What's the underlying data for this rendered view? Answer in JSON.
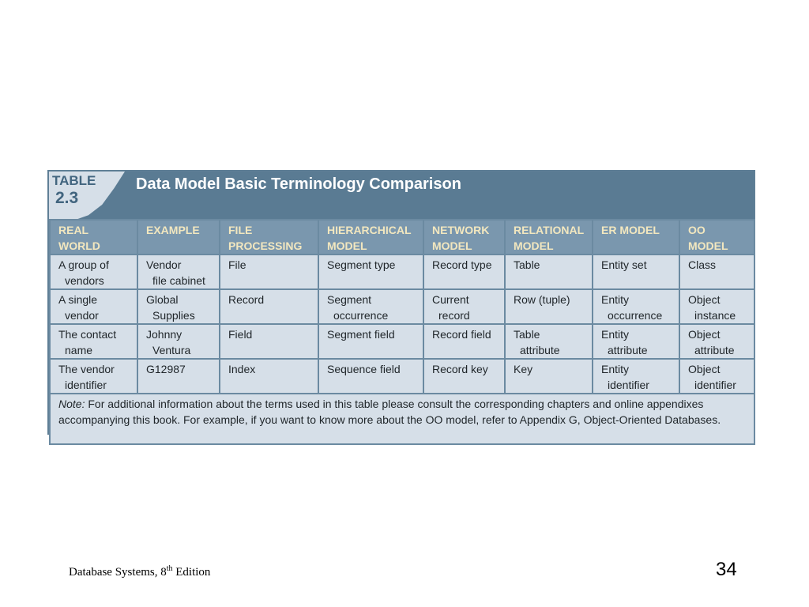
{
  "table": {
    "label_word": "TABLE",
    "label_number": "2.3",
    "title": "Data Model Basic Terminology Comparison",
    "headers": [
      [
        "REAL",
        "WORLD"
      ],
      [
        "EXAMPLE",
        ""
      ],
      [
        "FILE",
        "PROCESSING"
      ],
      [
        "HIERARCHICAL",
        "MODEL"
      ],
      [
        "NETWORK",
        "MODEL"
      ],
      [
        "RELATIONAL",
        "MODEL"
      ],
      [
        "ER MODEL",
        ""
      ],
      [
        "OO",
        "MODEL"
      ]
    ],
    "rows": [
      [
        [
          "A group of",
          "vendors"
        ],
        [
          "Vendor",
          "file cabinet"
        ],
        [
          "File",
          ""
        ],
        [
          "Segment type",
          ""
        ],
        [
          "Record type",
          ""
        ],
        [
          "Table",
          ""
        ],
        [
          "Entity set",
          ""
        ],
        [
          "Class",
          ""
        ]
      ],
      [
        [
          "A single",
          "vendor"
        ],
        [
          "Global",
          "Supplies"
        ],
        [
          "Record",
          ""
        ],
        [
          "Segment",
          "occurrence"
        ],
        [
          "Current",
          "record"
        ],
        [
          "Row (tuple)",
          ""
        ],
        [
          "Entity",
          "occurrence"
        ],
        [
          "Object",
          "instance"
        ]
      ],
      [
        [
          "The contact",
          "name"
        ],
        [
          "Johnny",
          "Ventura"
        ],
        [
          "Field",
          ""
        ],
        [
          "Segment field",
          ""
        ],
        [
          "Record field",
          ""
        ],
        [
          "Table",
          "attribute"
        ],
        [
          "Entity",
          "attribute"
        ],
        [
          "Object",
          "attribute"
        ]
      ],
      [
        [
          "The vendor",
          "identifier"
        ],
        [
          "G12987",
          ""
        ],
        [
          "Index",
          ""
        ],
        [
          "Sequence field",
          ""
        ],
        [
          "Record key",
          ""
        ],
        [
          "Key",
          ""
        ],
        [
          "Entity",
          "identifier"
        ],
        [
          "Object",
          "identifier"
        ]
      ]
    ],
    "note_label": "Note:",
    "note_text": " For additional information about the terms used in this table please consult the corresponding chapters and online appendixes accompanying this book. For example, if you want to know more about the OO model, refer to Appendix G, Object-Oriented Databases."
  },
  "footer": {
    "book": "Database Systems, 8",
    "superscript": "th",
    "edition": " Edition",
    "page_number": "34"
  },
  "colors": {
    "header_bar": "#5a7b93",
    "column_header": "#7a97ae",
    "header_text": "#f2e7bf",
    "cell_background": "#d6dfe8",
    "border": "#6b8aa1"
  }
}
